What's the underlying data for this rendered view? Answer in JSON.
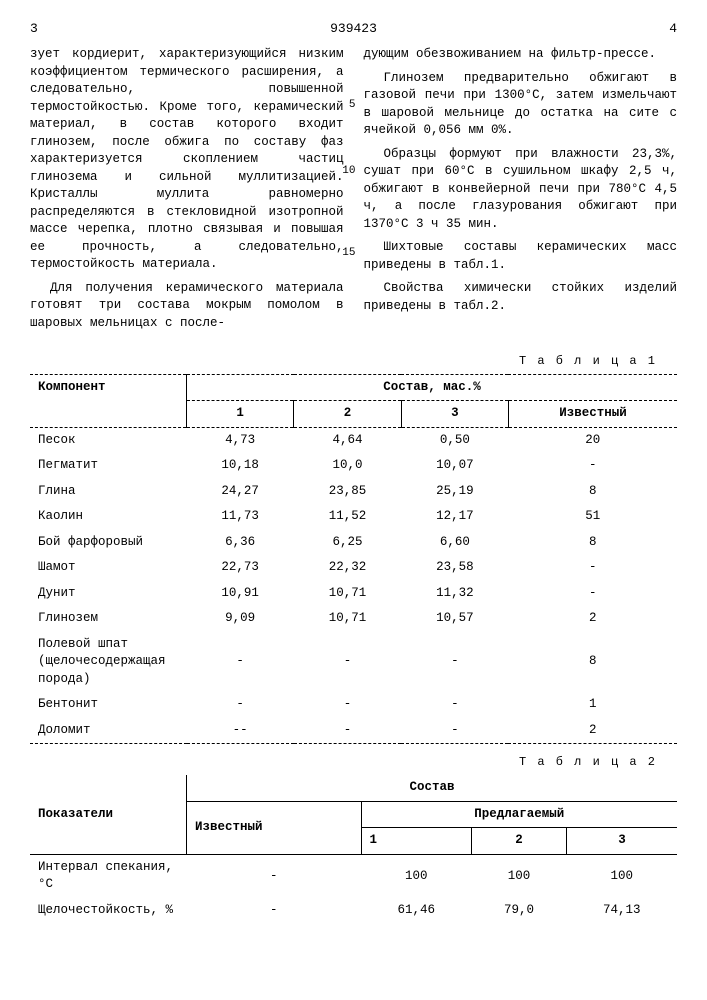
{
  "header": {
    "left_page": "3",
    "doc_number": "939423",
    "right_page": "4"
  },
  "left_col": {
    "p1": "зует кордиерит, характеризующийся низким коэффициентом термического расширения, а следовательно, повышенной термостойкостью. Кроме того, керамический материал, в состав которого входит глинозем, после обжига по составу фаз характеризуется скоплением частиц глинозема и сильной муллитизацией. Кристаллы муллита равномерно распределяются в стекловидной изотропной массе черепка, плотно связывая и повышая ее прочность, а следовательно, термостойкость материала.",
    "p2": "Для получения керамического материала готовят три состава мокрым помолом в шаровых мельницах с после-"
  },
  "right_col": {
    "p1": "дующим обезвоживанием на фильтр-прессе.",
    "p2": "Глинозем предварительно обжигают в газовой печи при 1300°С, затем измельчают в шаровой мельнице до остатка на сите с ячейкой 0,056 мм 0%.",
    "p3": "Образцы формуют при влажности 23,3%, сушат при 60°С в сушильном шкафу 2,5 ч, обжигают в конвейерной печи при 780°С 4,5 ч, а после глазурования обжигают при 1370°С 3 ч 35 мин.",
    "p4": "Шихтовые составы керамических масс приведены в табл.1.",
    "p5": "Свойства химически стойких изделий приведены в табл.2."
  },
  "line_numbers": {
    "l5": "5",
    "l10": "10",
    "l15": "15"
  },
  "table1": {
    "label": "Т а б л и ц а 1",
    "head_component": "Компонент",
    "head_composition": "Состав, мас.%",
    "col1": "1",
    "col2": "2",
    "col3": "3",
    "col_known": "Известный",
    "rows": [
      {
        "name": "Песок",
        "c1": "4,73",
        "c2": "4,64",
        "c3": "0,50",
        "ck": "20"
      },
      {
        "name": "Пегматит",
        "c1": "10,18",
        "c2": "10,0",
        "c3": "10,07",
        "ck": "-"
      },
      {
        "name": "Глина",
        "c1": "24,27",
        "c2": "23,85",
        "c3": "25,19",
        "ck": "8"
      },
      {
        "name": "Каолин",
        "c1": "11,73",
        "c2": "11,52",
        "c3": "12,17",
        "ck": "51"
      },
      {
        "name": "Бой фарфоровый",
        "c1": "6,36",
        "c2": "6,25",
        "c3": "6,60",
        "ck": "8"
      },
      {
        "name": "Шамот",
        "c1": "22,73",
        "c2": "22,32",
        "c3": "23,58",
        "ck": "-"
      },
      {
        "name": "Дунит",
        "c1": "10,91",
        "c2": "10,71",
        "c3": "11,32",
        "ck": "-"
      },
      {
        "name": "Глинозем",
        "c1": "9,09",
        "c2": "10,71",
        "c3": "10,57",
        "ck": "2"
      },
      {
        "name": "Полевой шпат (щелочесодержащая порода)",
        "c1": "-",
        "c2": "-",
        "c3": "-",
        "ck": "8"
      },
      {
        "name": "Бентонит",
        "c1": "-",
        "c2": "-",
        "c3": "-",
        "ck": "1"
      },
      {
        "name": "Доломит",
        "c1": "--",
        "c2": "-",
        "c3": "-",
        "ck": "2"
      }
    ]
  },
  "table2": {
    "label": "Т а б л и ц а 2",
    "head_indicators": "Показатели",
    "head_composition": "Состав",
    "head_known": "Известный",
    "head_proposed": "Предлагаемый",
    "col1": "1",
    "col2": "2",
    "col3": "3",
    "rows": [
      {
        "name": "Интервал спекания, °С",
        "ck": "-",
        "c1": "100",
        "c2": "100",
        "c3": "100"
      },
      {
        "name": "Щелочестойкость, %",
        "ck": "-",
        "c1": "61,46",
        "c2": "79,0",
        "c3": "74,13"
      }
    ]
  }
}
